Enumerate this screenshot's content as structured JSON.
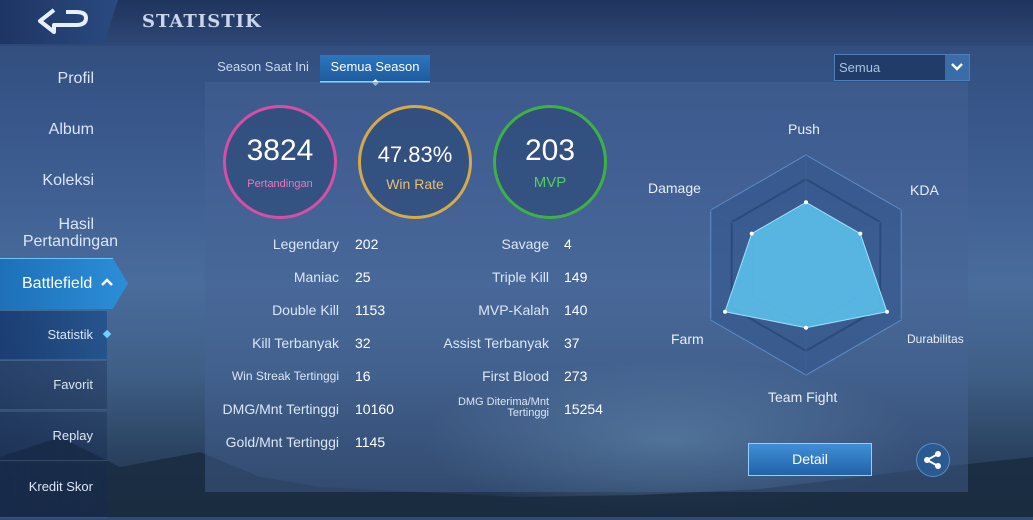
{
  "header": {
    "title": "STATISTIK"
  },
  "sidebar": {
    "items": [
      {
        "label": "Profil"
      },
      {
        "label": "Album"
      },
      {
        "label": "Koleksi"
      },
      {
        "label_line1": "Hasil",
        "label_line2": "Pertandingan"
      }
    ],
    "battlefield": {
      "label": "Battlefield"
    },
    "sub_items": [
      {
        "label": "Statistik"
      },
      {
        "label": "Favorit"
      },
      {
        "label": "Replay"
      },
      {
        "label": "Kredit Skor"
      }
    ]
  },
  "tabs": [
    {
      "label": "Season Saat Ini",
      "active": false
    },
    {
      "label": "Semua Season",
      "active": true
    }
  ],
  "filter": {
    "selected": "Semua"
  },
  "summary": {
    "matches": {
      "value": "3824",
      "label": "Pertandingan",
      "color": "#d64fa6"
    },
    "winrate": {
      "value": "47.83%",
      "label": "Win Rate",
      "color": "#d6a94a"
    },
    "mvp": {
      "value": "203",
      "label": "MVP",
      "color": "#3fb046"
    }
  },
  "stats_left": [
    {
      "label": "Legendary",
      "value": "202"
    },
    {
      "label": "Maniac",
      "value": "25"
    },
    {
      "label": "Double Kill",
      "value": "1153"
    },
    {
      "label": "Kill Terbanyak",
      "value": "32"
    },
    {
      "label": "Win Streak Tertinggi",
      "value": "16"
    },
    {
      "label": "DMG/Mnt Tertinggi",
      "value": "10160"
    },
    {
      "label": "Gold/Mnt Tertinggi",
      "value": "1145"
    }
  ],
  "stats_right": [
    {
      "label": "Savage",
      "value": "4"
    },
    {
      "label": "Triple Kill",
      "value": "149"
    },
    {
      "label": "MVP-Kalah",
      "value": "140"
    },
    {
      "label": "Assist Terbanyak",
      "value": "37"
    },
    {
      "label": "First Blood",
      "value": "273"
    },
    {
      "label_line1": "DMG Diterima/Mnt",
      "label_line2": "Tertinggi",
      "value": "15254"
    }
  ],
  "radar": {
    "axes": [
      "Push",
      "KDA",
      "Durabilitas",
      "Team Fight",
      "Farm",
      "Damage"
    ],
    "values": [
      0.57,
      0.57,
      0.85,
      0.57,
      0.85,
      0.57
    ],
    "fill": "#5ec4ee"
  },
  "detail_button": {
    "label": "Detail"
  },
  "icons": {
    "back": "back-arrow-icon",
    "share": "share-icon",
    "dropdown": "chevron-down-icon"
  }
}
